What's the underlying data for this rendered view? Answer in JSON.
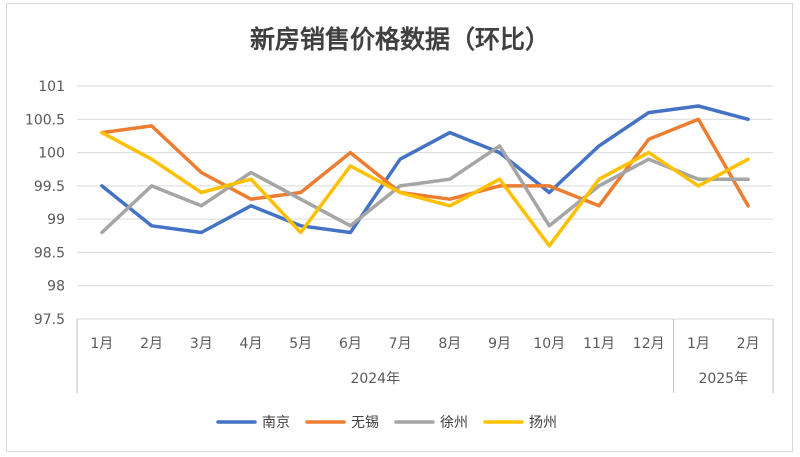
{
  "chart_data": {
    "type": "line",
    "title": "新房销售价格数据（环比）",
    "xlabel": "",
    "ylabel": "",
    "ylim": [
      97.5,
      101
    ],
    "yticks": [
      "101",
      "100.5",
      "100",
      "99.5",
      "99",
      "98.5",
      "98",
      "97.5"
    ],
    "categories": [
      "1月",
      "2月",
      "3月",
      "4月",
      "5月",
      "6月",
      "7月",
      "8月",
      "9月",
      "10月",
      "11月",
      "12月",
      "1月",
      "2月"
    ],
    "groups": [
      {
        "label": "2024年",
        "count": 12
      },
      {
        "label": "2025年",
        "count": 2
      }
    ],
    "grid": true,
    "legend": "bottom",
    "series": [
      {
        "name": "南京",
        "color": "#4472C4",
        "values": [
          99.5,
          98.9,
          98.8,
          99.2,
          98.9,
          98.8,
          99.9,
          100.3,
          100.0,
          99.4,
          100.1,
          100.6,
          100.7,
          100.5
        ]
      },
      {
        "name": "无锡",
        "color": "#ED7D31",
        "values": [
          100.3,
          100.4,
          99.7,
          99.3,
          99.4,
          100.0,
          99.4,
          99.3,
          99.5,
          99.5,
          99.2,
          100.2,
          100.5,
          99.2
        ]
      },
      {
        "name": "徐州",
        "color": "#A5A5A5",
        "values": [
          98.8,
          99.5,
          99.2,
          99.7,
          99.3,
          98.9,
          99.5,
          99.6,
          100.1,
          98.9,
          99.5,
          99.9,
          99.6,
          99.6
        ]
      },
      {
        "name": "扬州",
        "color": "#FFC000",
        "values": [
          100.3,
          99.9,
          99.4,
          99.6,
          98.8,
          99.8,
          99.4,
          99.2,
          99.6,
          98.6,
          99.6,
          100.0,
          99.5,
          99.9
        ]
      }
    ]
  }
}
